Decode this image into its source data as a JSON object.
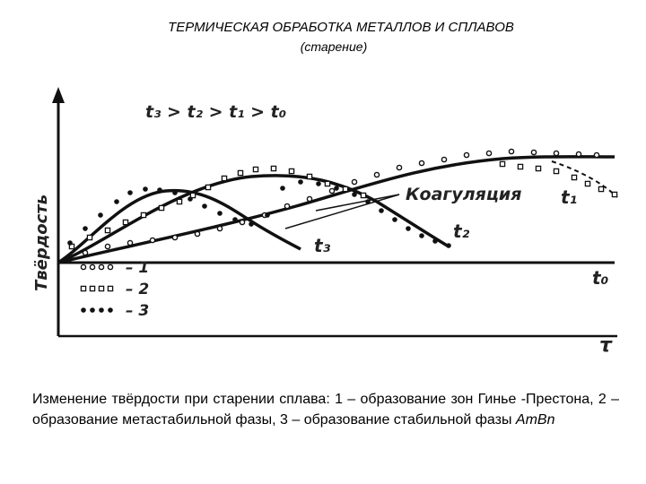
{
  "header": {
    "title": "ТЕРМИЧЕСКАЯ ОБРАБОТКА МЕТАЛЛОВ И СПЛАВОВ",
    "subtitle": "(старение)"
  },
  "diagram": {
    "y_axis_label": "Твёрдость",
    "x_axis_label": "τ",
    "relation": "t₃ > t₂ > t₁ > t₀",
    "coagulation_label": "Коагуляция",
    "curve_labels": {
      "t0": "t₀",
      "t1": "t₁",
      "t2": "t₂",
      "t3": "t₃"
    },
    "legend": [
      {
        "marker": "open-circle",
        "text": "– 1"
      },
      {
        "marker": "open-square",
        "text": "– 2"
      },
      {
        "marker": "filled-dot",
        "text": "– 3"
      }
    ]
  },
  "caption": {
    "text": "Изменение твёрдости при старении сплава: 1 – образование зон Гинье -Престона, 2 – образование метастабильной фазы, 3 – образование стабильной фазы ",
    "formula": "AmBn"
  }
}
